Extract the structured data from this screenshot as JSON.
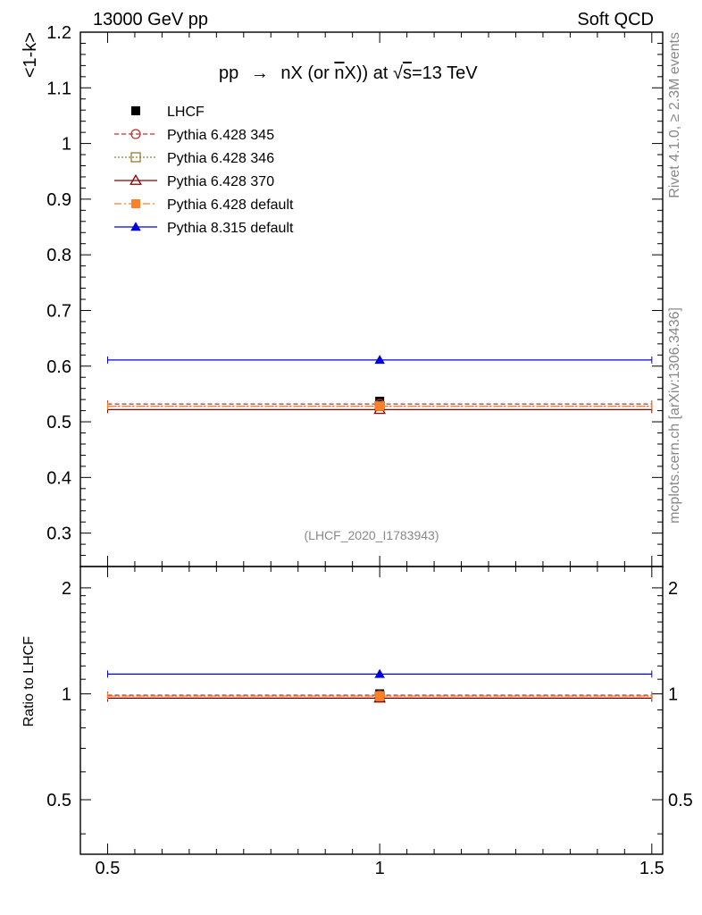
{
  "header": {
    "energy_label": "13000 GeV pp",
    "category_label": "Soft QCD"
  },
  "side_labels": {
    "rivet": "Rivet 4.1.0, ≥ 2.3M events",
    "mcplots": "mcplots.cern.ch [arXiv:1306.3436]"
  },
  "watermark": "(LHCF_2020_I1783943)",
  "chart_data": [
    {
      "type": "scatter",
      "title_parts": {
        "prefix": "pp",
        "arrow": "→",
        "process": "nX (or ",
        "nbar": "n",
        "suffix": "X)) at ",
        "sqrt": "√",
        "s": "s",
        "energy": "=13 TeV"
      },
      "ylabel": "<1-k>",
      "xlim": [
        0.45,
        1.52
      ],
      "ylim": [
        0.24,
        1.2
      ],
      "xticks": [
        0.5,
        1,
        1.5
      ],
      "xtick_labels": [
        "0.5",
        "1",
        "1.5"
      ],
      "yticks": [
        0.3,
        0.4,
        0.5,
        0.6,
        0.7,
        0.8,
        0.9,
        1.0,
        1.1,
        1.2
      ],
      "ytick_labels": [
        "0.3",
        "0.4",
        "0.5",
        "0.6",
        "0.7",
        "0.8",
        "0.9",
        "1",
        "1.1",
        "1.2"
      ],
      "x": [
        1.0
      ],
      "x_range": [
        0.5,
        1.5
      ],
      "series": [
        {
          "name": "LHCF",
          "values": [
            0.537
          ],
          "color": "#000000",
          "marker": "square-filled",
          "line": "none"
        },
        {
          "name": "Pythia 6.428 345",
          "values": [
            0.532
          ],
          "color": "#bb3333",
          "marker": "circle-open",
          "line": "dashed"
        },
        {
          "name": "Pythia 6.428 346",
          "values": [
            0.528
          ],
          "color": "#9a7a30",
          "marker": "square-open",
          "line": "dotted"
        },
        {
          "name": "Pythia 6.428 370",
          "values": [
            0.522
          ],
          "color": "#8b0000",
          "marker": "triangle-open",
          "line": "solid"
        },
        {
          "name": "Pythia 6.428 default",
          "values": [
            0.528
          ],
          "color": "#ff7f27",
          "marker": "square-filled",
          "line": "dashdot"
        },
        {
          "name": "Pythia 8.315 default",
          "values": [
            0.611
          ],
          "color": "#0000dd",
          "marker": "triangle-filled",
          "line": "solid"
        }
      ]
    },
    {
      "type": "scatter",
      "ylabel": "Ratio to LHCF",
      "xlim": [
        0.45,
        1.52
      ],
      "ylim": [
        0.35,
        2.3
      ],
      "yscale": "log",
      "yticks": [
        0.5,
        1,
        2
      ],
      "ytick_labels": [
        "0.5",
        "1",
        "2"
      ],
      "x": [
        1.0
      ],
      "x_range": [
        0.5,
        1.5
      ],
      "series": [
        {
          "name": "LHCF",
          "values": [
            1.0
          ],
          "color": "#000000",
          "marker": "square-filled",
          "line": "none"
        },
        {
          "name": "Pythia 6.428 345",
          "values": [
            0.991
          ],
          "color": "#bb3333",
          "marker": "circle-open",
          "line": "dashed"
        },
        {
          "name": "Pythia 6.428 346",
          "values": [
            0.985
          ],
          "color": "#9a7a30",
          "marker": "square-open",
          "line": "dotted"
        },
        {
          "name": "Pythia 6.428 370",
          "values": [
            0.972
          ],
          "color": "#8b0000",
          "marker": "triangle-open",
          "line": "solid"
        },
        {
          "name": "Pythia 6.428 default",
          "values": [
            0.985
          ],
          "color": "#ff7f27",
          "marker": "square-filled",
          "line": "dashdot"
        },
        {
          "name": "Pythia 8.315 default",
          "values": [
            1.138
          ],
          "color": "#0000dd",
          "marker": "triangle-filled",
          "line": "solid"
        }
      ]
    }
  ]
}
